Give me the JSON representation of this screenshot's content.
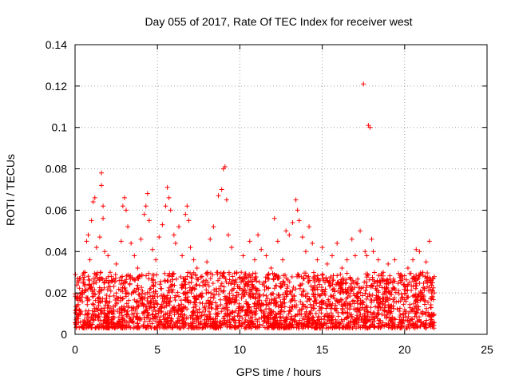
{
  "chart_data": {
    "type": "scatter",
    "title": "Day 055 of 2017, Rate Of TEC Index for receiver west",
    "xlabel": "GPS time / hours",
    "ylabel": "ROTI / TECUs",
    "xlim": [
      0,
      25
    ],
    "ylim": [
      0,
      0.14
    ],
    "x_ticks": [
      0,
      5,
      10,
      15,
      20,
      25
    ],
    "x_tick_labels": [
      "0",
      "5",
      "10",
      "15",
      "20",
      "25"
    ],
    "y_ticks": [
      0,
      0.02,
      0.04,
      0.06,
      0.08,
      0.1,
      0.12,
      0.14
    ],
    "y_tick_labels": [
      "0",
      "0.02",
      "0.04",
      "0.06",
      "0.08",
      "0.1",
      "0.12",
      "0.14"
    ],
    "grid": true,
    "marker": "+",
    "marker_color": "#ff0000",
    "series": [
      {
        "name": "ROTI",
        "color": "#ff0000",
        "points": [
          [
            0.1,
            0.012
          ],
          [
            0.2,
            0.025
          ],
          [
            0.4,
            0.018
          ],
          [
            0.6,
            0.03
          ],
          [
            0.7,
            0.045
          ],
          [
            0.8,
            0.048
          ],
          [
            0.9,
            0.036
          ],
          [
            1.0,
            0.055
          ],
          [
            1.1,
            0.064
          ],
          [
            1.2,
            0.066
          ],
          [
            1.3,
            0.042
          ],
          [
            1.5,
            0.047
          ],
          [
            1.6,
            0.072
          ],
          [
            1.6,
            0.078
          ],
          [
            1.7,
            0.062
          ],
          [
            1.7,
            0.056
          ],
          [
            1.8,
            0.04
          ],
          [
            2.0,
            0.038
          ],
          [
            2.2,
            0.028
          ],
          [
            2.5,
            0.034
          ],
          [
            2.8,
            0.045
          ],
          [
            2.9,
            0.062
          ],
          [
            3.0,
            0.066
          ],
          [
            3.1,
            0.06
          ],
          [
            3.2,
            0.052
          ],
          [
            3.4,
            0.044
          ],
          [
            3.6,
            0.038
          ],
          [
            3.8,
            0.032
          ],
          [
            4.0,
            0.046
          ],
          [
            4.2,
            0.058
          ],
          [
            4.3,
            0.062
          ],
          [
            4.4,
            0.068
          ],
          [
            4.5,
            0.055
          ],
          [
            4.7,
            0.041
          ],
          [
            4.9,
            0.036
          ],
          [
            5.1,
            0.047
          ],
          [
            5.3,
            0.053
          ],
          [
            5.5,
            0.062
          ],
          [
            5.6,
            0.071
          ],
          [
            5.7,
            0.066
          ],
          [
            5.8,
            0.06
          ],
          [
            6.0,
            0.048
          ],
          [
            6.1,
            0.044
          ],
          [
            6.3,
            0.052
          ],
          [
            6.5,
            0.038
          ],
          [
            6.7,
            0.058
          ],
          [
            6.8,
            0.062
          ],
          [
            6.9,
            0.055
          ],
          [
            7.0,
            0.042
          ],
          [
            7.2,
            0.036
          ],
          [
            7.4,
            0.032
          ],
          [
            7.7,
            0.028
          ],
          [
            8.0,
            0.035
          ],
          [
            8.2,
            0.046
          ],
          [
            8.4,
            0.052
          ],
          [
            8.7,
            0.067
          ],
          [
            8.9,
            0.07
          ],
          [
            9.0,
            0.08
          ],
          [
            9.1,
            0.081
          ],
          [
            9.2,
            0.065
          ],
          [
            9.3,
            0.048
          ],
          [
            9.5,
            0.042
          ],
          [
            9.8,
            0.03
          ],
          [
            10.2,
            0.038
          ],
          [
            10.6,
            0.045
          ],
          [
            10.9,
            0.036
          ],
          [
            11.1,
            0.048
          ],
          [
            11.3,
            0.041
          ],
          [
            11.6,
            0.038
          ],
          [
            11.9,
            0.032
          ],
          [
            12.1,
            0.056
          ],
          [
            12.3,
            0.045
          ],
          [
            12.6,
            0.036
          ],
          [
            12.8,
            0.05
          ],
          [
            13.0,
            0.048
          ],
          [
            13.2,
            0.054
          ],
          [
            13.4,
            0.065
          ],
          [
            13.5,
            0.06
          ],
          [
            13.6,
            0.055
          ],
          [
            13.8,
            0.047
          ],
          [
            14.0,
            0.04
          ],
          [
            14.2,
            0.052
          ],
          [
            14.4,
            0.044
          ],
          [
            14.7,
            0.036
          ],
          [
            15.0,
            0.042
          ],
          [
            15.3,
            0.034
          ],
          [
            15.6,
            0.038
          ],
          [
            15.9,
            0.044
          ],
          [
            16.2,
            0.032
          ],
          [
            16.5,
            0.036
          ],
          [
            16.8,
            0.046
          ],
          [
            17.0,
            0.038
          ],
          [
            17.3,
            0.05
          ],
          [
            17.5,
            0.121
          ],
          [
            17.6,
            0.04
          ],
          [
            17.7,
            0.038
          ],
          [
            17.8,
            0.101
          ],
          [
            17.9,
            0.1
          ],
          [
            18.0,
            0.046
          ],
          [
            18.1,
            0.04
          ],
          [
            18.4,
            0.036
          ],
          [
            18.7,
            0.03
          ],
          [
            19.0,
            0.034
          ],
          [
            19.4,
            0.036
          ],
          [
            19.8,
            0.028
          ],
          [
            20.2,
            0.032
          ],
          [
            20.5,
            0.036
          ],
          [
            20.7,
            0.041
          ],
          [
            20.9,
            0.04
          ],
          [
            21.1,
            0.03
          ],
          [
            21.3,
            0.035
          ],
          [
            21.5,
            0.045
          ],
          [
            21.7,
            0.027
          ],
          [
            21.8,
            0.02
          ]
        ]
      }
    ],
    "dense_band": {
      "description": "dense cloud of + markers across the observation window",
      "x_range": [
        0,
        21.8
      ],
      "y_range": [
        0.003,
        0.03
      ]
    }
  }
}
